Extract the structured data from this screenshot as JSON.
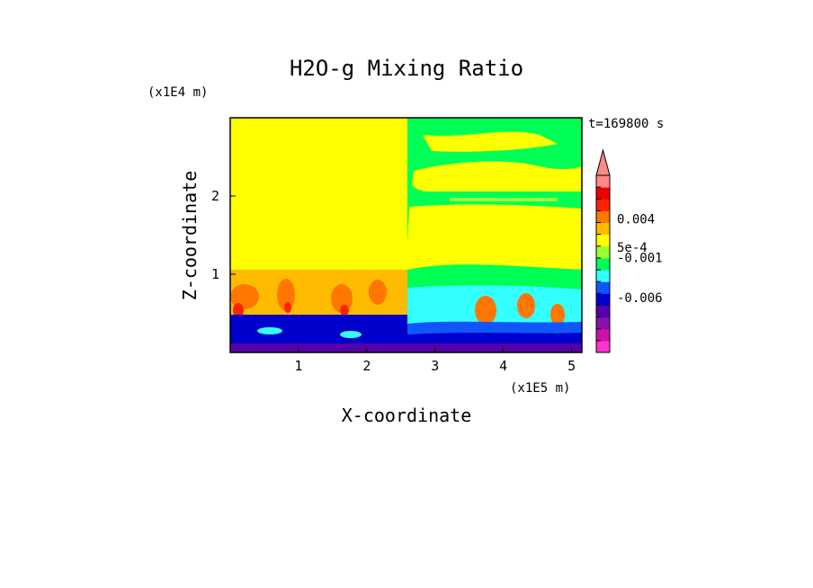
{
  "chart_data": {
    "type": "heatmap",
    "title": "H2O-g Mixing Ratio",
    "xlabel": "X-coordinate",
    "ylabel": "Z-coordinate",
    "x_unit": "(x1E5 m)",
    "y_unit": "(x1E4 m)",
    "time_label": "t=169800 s",
    "xlim": [
      0,
      5.15
    ],
    "ylim": [
      0,
      3.0
    ],
    "x_ticks": [
      1,
      2,
      3,
      4,
      5
    ],
    "y_ticks": [
      1,
      2
    ],
    "colorbar": {
      "colors": [
        "#ff33cc",
        "#cc11aa",
        "#8811aa",
        "#5500aa",
        "#0000cc",
        "#1155ff",
        "#33ffff",
        "#00ff55",
        "#99ff33",
        "#ffff00",
        "#ffbb00",
        "#ff7700",
        "#ff2200",
        "#ee0000",
        "#ff8888"
      ],
      "labels": [
        {
          "text": "-0.006",
          "at": 0.31
        },
        {
          "text": "-0.001",
          "at": 0.535
        },
        {
          "text": "5e-4",
          "at": 0.595
        },
        {
          "text": "0.004",
          "at": 0.755
        }
      ]
    },
    "regions": [
      {
        "name": "upper-left",
        "dominant_level": "yellow"
      },
      {
        "name": "upper-right",
        "dominant_level": "green/yellow bands"
      },
      {
        "name": "middle",
        "dominant_level": "orange/red convective plumes"
      },
      {
        "name": "bottom",
        "dominant_level": "blue/dark blue"
      }
    ]
  }
}
